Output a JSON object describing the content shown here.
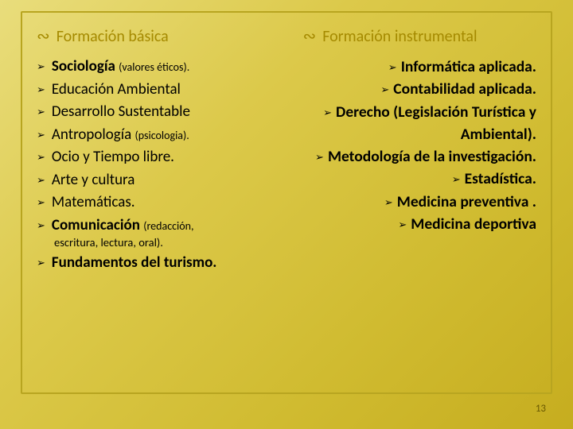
{
  "background": {
    "gradient_from": "#e9dd7c",
    "gradient_to": "#c6ad1f",
    "frame_border": "#b8a520"
  },
  "left": {
    "heading": "Formación básica",
    "items": [
      {
        "main": "Sociología",
        "note": "(valores éticos).",
        "bold": true
      },
      {
        "main": "Educación Ambiental",
        "bold": false
      },
      {
        "main": "Desarrollo Sustentable",
        "bold": false
      },
      {
        "main": "Antropología",
        "note": "(psicologia).",
        "bold": false
      },
      {
        "main": "Ocio y Tiempo libre.",
        "bold": false
      },
      {
        "main": "Arte  y cultura",
        "bold": false
      },
      {
        "main": "Matemáticas.",
        "bold": false
      },
      {
        "main": "Comunicación",
        "note": "(redacción,",
        "bold": true,
        "sub": "escritura, lectura, oral)."
      },
      {
        "main": "Fundamentos del turismo.",
        "bold": true
      }
    ]
  },
  "right": {
    "heading": "Formación instrumental",
    "items": [
      {
        "text": "Informática aplicada.",
        "bold": true
      },
      {
        "text": "Contabilidad aplicada.",
        "bold": true
      },
      {
        "text": "Derecho (Legislación Turística y Ambiental).",
        "bold": true
      },
      {
        "text": "Metodología de la investigación.",
        "bold": true
      },
      {
        "text": "Estadística.",
        "bold": true
      },
      {
        "text": "Medicina preventiva .",
        "bold": true
      },
      {
        "text": "Medicina deportiva",
        "bold": true
      }
    ]
  },
  "page_number": "13",
  "bullet_glyph": "➢",
  "heading_glyph": "∾"
}
